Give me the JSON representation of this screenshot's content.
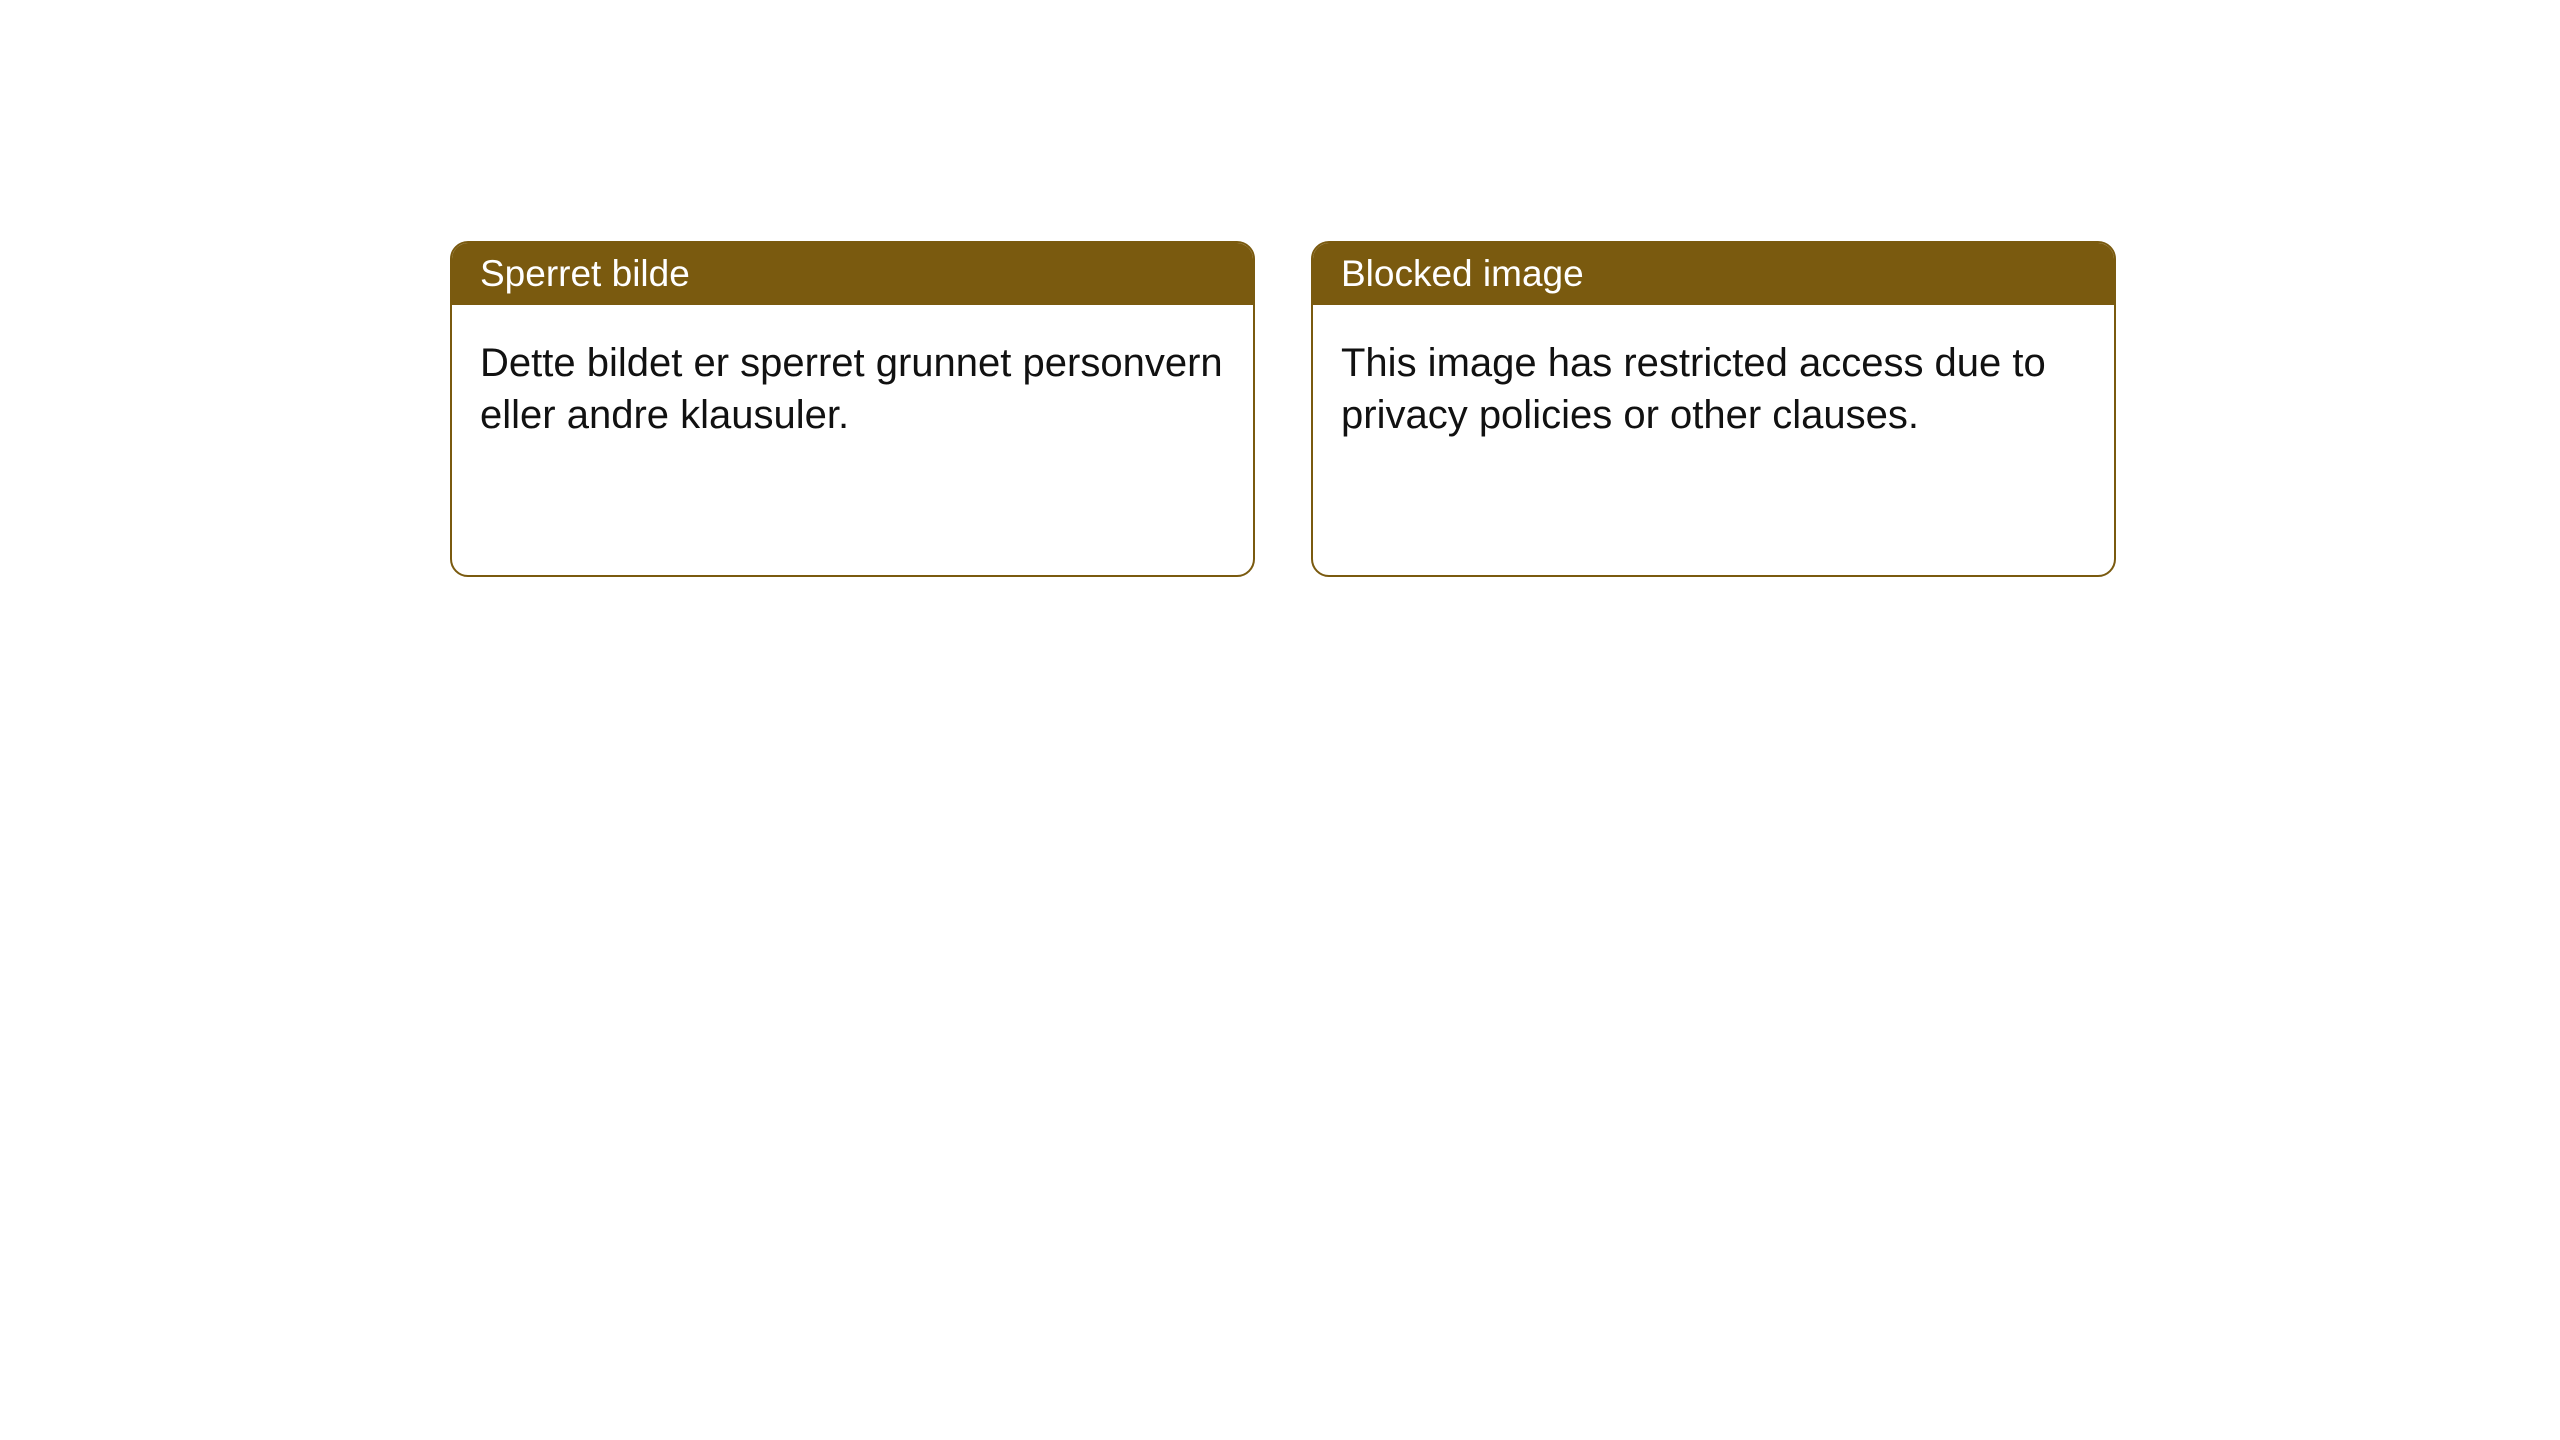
{
  "cards": [
    {
      "header": "Sperret bilde",
      "body": "Dette bildet er sperret grunnet personvern eller andre klausuler."
    },
    {
      "header": "Blocked image",
      "body": "This image has restricted access due to privacy policies or other clauses."
    }
  ],
  "style": {
    "header_bg": "#7a5a0f",
    "header_color": "#ffffff",
    "border_color": "#7a5a0f",
    "body_bg": "#ffffff",
    "body_color": "#111111",
    "page_bg": "#ffffff",
    "border_radius": 18,
    "header_fontsize": 37,
    "body_fontsize": 40
  }
}
